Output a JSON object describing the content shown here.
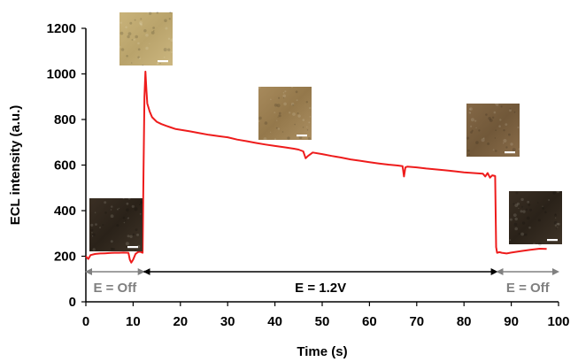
{
  "chart_data": {
    "type": "line",
    "xlabel": "Time (s)",
    "ylabel": "ECL intensity (a.u.)",
    "xlim": [
      0,
      100
    ],
    "ylim": [
      0,
      1200
    ],
    "xticks": [
      "0",
      "10",
      "20",
      "30",
      "40",
      "50",
      "60",
      "70",
      "80",
      "90",
      "100"
    ],
    "yticks": [
      "0",
      "200",
      "400",
      "600",
      "800",
      "1000",
      "1200"
    ],
    "grid": false,
    "legend": "none",
    "series": [
      {
        "color": "#ee1c1c",
        "x": [
          0,
          0.5,
          1,
          2,
          3,
          4,
          5,
          6,
          7,
          8,
          9,
          9.3,
          9.6,
          10,
          10.5,
          11,
          11.5,
          12,
          12.2,
          12.4,
          12.6,
          12.8,
          13,
          13.5,
          14,
          15,
          16,
          17,
          18,
          19,
          20,
          22,
          24,
          26,
          28,
          30,
          32,
          34,
          36,
          38,
          40,
          42,
          44,
          45,
          46,
          46.5,
          47,
          48,
          50,
          52,
          54,
          56,
          58,
          60,
          62,
          64,
          66,
          67,
          67.3,
          67.6,
          68,
          70,
          72,
          74,
          76,
          78,
          80,
          82,
          84,
          84.5,
          85,
          85.5,
          86,
          86.6,
          86.8,
          87,
          87.5,
          88,
          89,
          90,
          92,
          94,
          96,
          97.5
        ],
        "y": [
          200,
          188,
          205,
          210,
          212,
          213,
          214,
          215,
          215,
          216,
          215,
          185,
          172,
          185,
          210,
          218,
          220,
          215,
          560,
          900,
          1010,
          930,
          870,
          835,
          810,
          790,
          780,
          772,
          765,
          758,
          755,
          748,
          740,
          733,
          727,
          722,
          712,
          705,
          697,
          690,
          684,
          678,
          672,
          668,
          660,
          630,
          640,
          655,
          648,
          640,
          633,
          625,
          619,
          613,
          607,
          602,
          598,
          595,
          550,
          590,
          593,
          590,
          585,
          581,
          577,
          573,
          568,
          565,
          562,
          550,
          565,
          545,
          555,
          552,
          240,
          215,
          218,
          215,
          212,
          216,
          222,
          228,
          233,
          232
        ]
      }
    ],
    "annotations": [
      {
        "label": "E = Off",
        "x_range": [
          0,
          12.3
        ],
        "color": "#808080"
      },
      {
        "label": "E = 1.2V",
        "x_range": [
          12.3,
          87
        ],
        "color": "#000000"
      },
      {
        "label": "E = Off",
        "x_range": [
          87,
          100
        ],
        "color": "#808080"
      }
    ],
    "inset_images": [
      {
        "name": "dark-film-image",
        "time_s": 5,
        "tone": "dark"
      },
      {
        "name": "bright-film-image",
        "time_s": 12.5,
        "tone": "light"
      },
      {
        "name": "mid-film-image",
        "time_s": 48,
        "tone": "medium"
      },
      {
        "name": "late-film-image",
        "time_s": 84,
        "tone": "medium-dark"
      },
      {
        "name": "off-film-image",
        "time_s": 93,
        "tone": "dark"
      }
    ]
  }
}
